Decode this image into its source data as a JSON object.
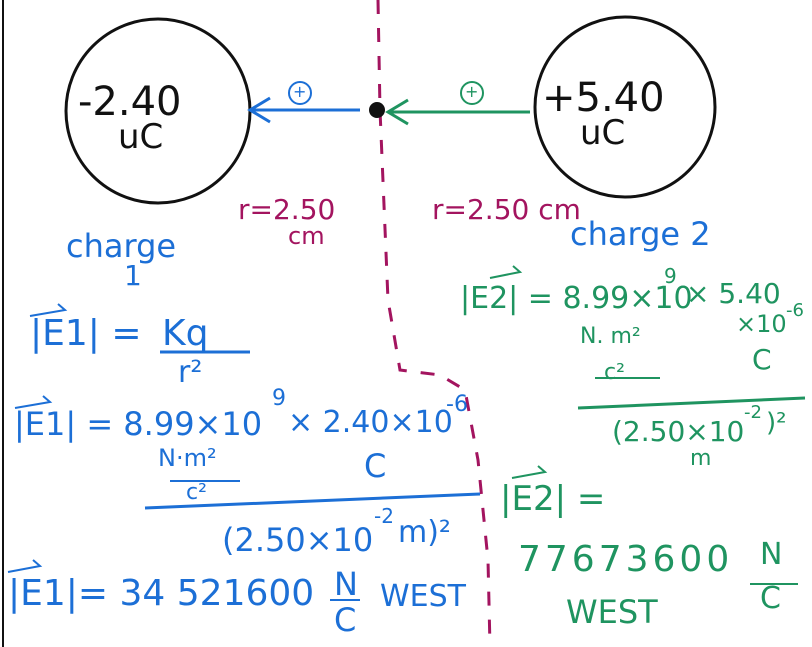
{
  "charge_left": {
    "value": "-2.40",
    "unit": "uC"
  },
  "charge_right": {
    "value": "+5.40",
    "unit": "uC"
  },
  "test_charge_symbol": "+",
  "distance_left": {
    "r": "r=2.50",
    "unit": "cm"
  },
  "distance_right": "r=2.50 cm",
  "left_work": {
    "heading_1": "charge",
    "heading_2": "1",
    "formula_lhs": "|E1| = ",
    "formula_num": "Kq",
    "formula_den": "r²",
    "sub_lhs": "|E1| = 8.99×10",
    "sub_exp": "9",
    "sub_times": "× 2.40×10",
    "sub_exp2": "-6",
    "sub_units_num": "N·m²",
    "sub_units_den": "c²",
    "sub_c": "C",
    "sub_denominator": "(2.50×10",
    "sub_denominator_exp": "-2",
    "sub_denominator_end": "m)²",
    "result": "|E1|= 34 521600",
    "result_unit_num": "N",
    "result_unit_den": "C",
    "result_dir": "WEST"
  },
  "right_work": {
    "heading": "charge 2",
    "sub_lhs": "|E2| = 8.99×10",
    "sub_exp": "9",
    "sub_times": "× 5.40",
    "sub_line2": "×10",
    "sub_exp2": "-6",
    "sub_units_num": "N. m²",
    "sub_units_den": "c²",
    "sub_c": "C",
    "sub_denominator": "(2.50×10",
    "sub_denominator_exp": "-2",
    "sub_denominator_end": ")²",
    "sub_denominator_unit": "m",
    "result_lhs": "|E2| =",
    "result": "77673600",
    "result_unit_num": "N",
    "result_unit_den": "C",
    "result_dir": "WEST"
  },
  "colors": {
    "magenta": "#a3145f",
    "blue": "#1c6fd6",
    "green": "#1f9460",
    "black": "#111111"
  }
}
